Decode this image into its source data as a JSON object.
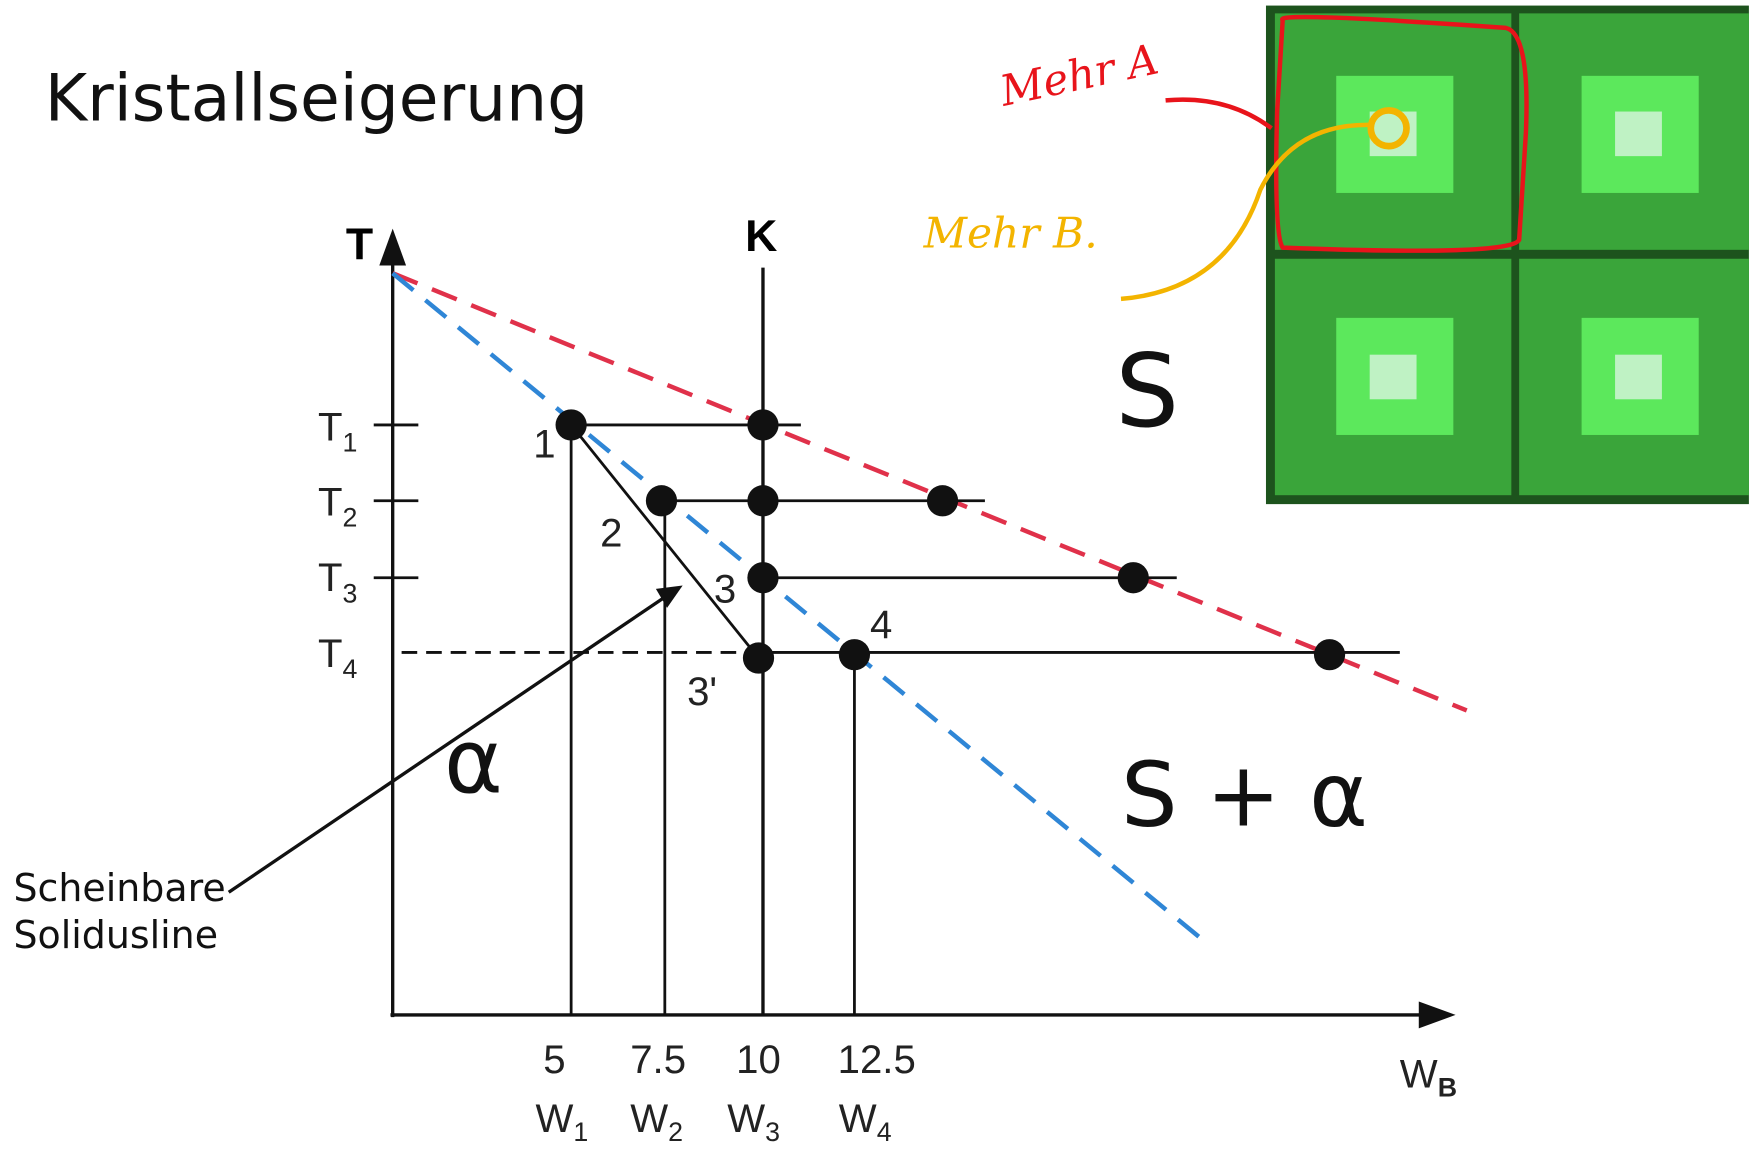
{
  "header": {
    "title": "Kristallseigerung"
  },
  "diagram": {
    "y_axis_label": "T",
    "concentration_label": "K",
    "x_axis_label": {
      "base": "W",
      "sub": "B"
    },
    "temperature_labels": [
      {
        "base": "T",
        "sub": "1"
      },
      {
        "base": "T",
        "sub": "2"
      },
      {
        "base": "T",
        "sub": "3"
      },
      {
        "base": "T",
        "sub": "4"
      }
    ],
    "point_labels": [
      "1",
      "2",
      "3",
      "3'",
      "4"
    ],
    "composition_values": [
      "5",
      "7.5",
      "10",
      "12.5"
    ],
    "composition_labels": [
      {
        "base": "W",
        "sub": "1"
      },
      {
        "base": "W",
        "sub": "2"
      },
      {
        "base": "W",
        "sub": "3"
      },
      {
        "base": "W",
        "sub": "4"
      }
    ],
    "regions": [
      "S",
      "α",
      "S + α"
    ],
    "annotation": [
      "Scheinbare",
      "Solidusline"
    ]
  },
  "handwriting": {
    "red": "Mehr A",
    "yellow": "Mehr B."
  }
}
